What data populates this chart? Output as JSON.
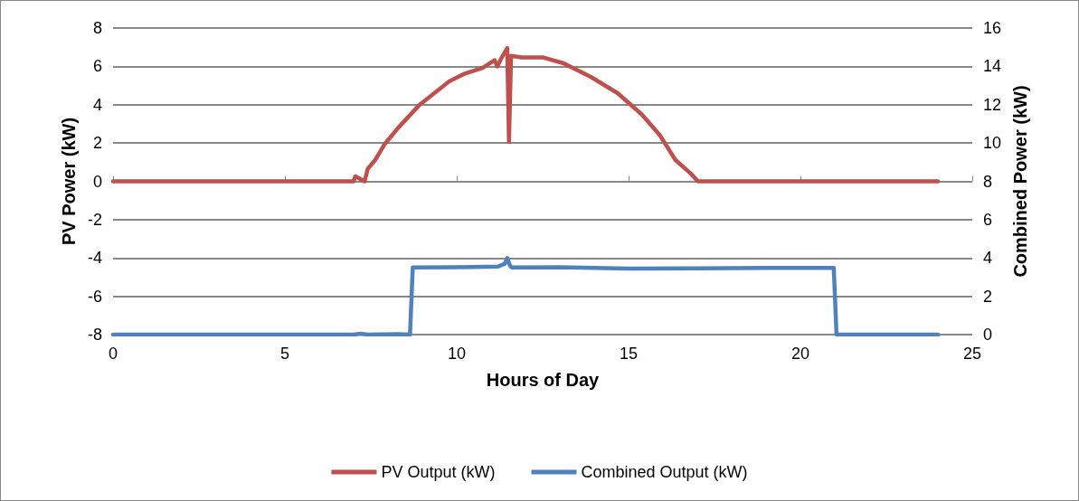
{
  "chart_data": {
    "type": "line",
    "xlabel": "Hours of Day",
    "ylabel": "PV Power (kW)",
    "y2label": "Combined Power (kW)",
    "xlim": [
      0,
      25
    ],
    "xticks": [
      0,
      5,
      10,
      15,
      20,
      25
    ],
    "ylim": [
      -8,
      8
    ],
    "yticks": [
      -8,
      -6,
      -4,
      -2,
      0,
      2,
      4,
      6,
      8
    ],
    "y2lim": [
      0,
      16
    ],
    "y2ticks": [
      0,
      2,
      4,
      6,
      8,
      10,
      12,
      14,
      16
    ],
    "grid": "y",
    "legend": "bottom",
    "marker": "none",
    "line_style": "solid",
    "series": [
      {
        "name": "PV Output (kW)",
        "color": "#c0504d",
        "x": [
          0,
          7,
          7.05,
          7.32,
          7.41,
          7.63,
          7.89,
          8.29,
          8.9,
          9.78,
          10.22,
          10.75,
          11.1,
          11.18,
          11.32,
          11.47,
          11.52,
          11.58,
          11.89,
          12.5,
          13.11,
          13.9,
          14.69,
          15.39,
          15.92,
          16.36,
          16.8,
          17.02,
          24
        ],
        "values": [
          0,
          0,
          0.26,
          0,
          0.65,
          1.12,
          1.91,
          2.78,
          3.96,
          5.22,
          5.61,
          5.92,
          6.32,
          6.0,
          6.5,
          6.95,
          2.07,
          6.55,
          6.47,
          6.47,
          6.16,
          5.45,
          4.59,
          3.48,
          2.38,
          1.12,
          0.42,
          0,
          0
        ]
      },
      {
        "name": "Combined Output (kW)",
        "color": "#4f81bd",
        "axis": "y2",
        "x": [
          0,
          7,
          7.2,
          7.4,
          8.3,
          8.64,
          8.72,
          10,
          11.2,
          11.4,
          11.47,
          11.55,
          11.6,
          13,
          14,
          15,
          17,
          19,
          20.97,
          21.05,
          24
        ],
        "values": [
          0,
          0,
          0.05,
          0,
          0.02,
          0,
          3.5,
          3.52,
          3.55,
          3.7,
          4.0,
          3.6,
          3.5,
          3.52,
          3.48,
          3.45,
          3.46,
          3.48,
          3.48,
          0,
          0
        ]
      }
    ]
  }
}
